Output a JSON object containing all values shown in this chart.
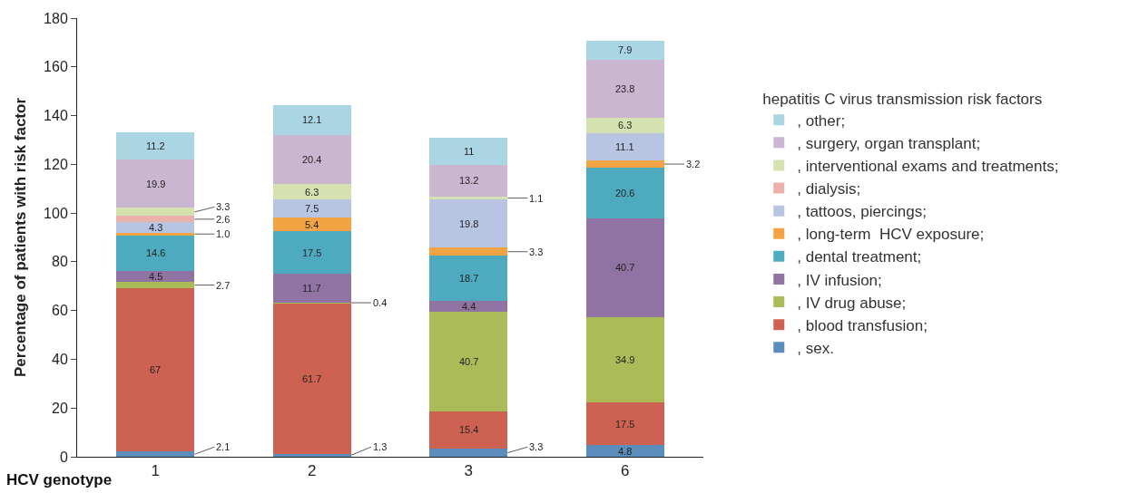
{
  "chart_data": {
    "type": "bar",
    "stacked": true,
    "ylabel": "Percentage of patients with risk factor",
    "xlabel": "HCV genotype",
    "legend_title": "hepatitis C virus transmission risk factors",
    "legend": "right",
    "categories": [
      "1",
      "2",
      "3",
      "6"
    ],
    "ylim": [
      0,
      180
    ],
    "yticks": [
      0,
      20,
      40,
      60,
      80,
      100,
      120,
      140,
      160,
      180
    ],
    "series": [
      {
        "name": ", sex.",
        "color": "#5b8dbd",
        "values": [
          2.1,
          1.3,
          3.3,
          4.8
        ],
        "value_labels": [
          "2.1",
          "1.3",
          "3.3",
          "4.8"
        ]
      },
      {
        "name": ", blood transfusion;",
        "color": "#cd6253",
        "values": [
          67,
          61.7,
          15.4,
          17.5
        ],
        "value_labels": [
          "67",
          "61.7",
          "15.4",
          "17.5"
        ]
      },
      {
        "name": ", IV drug abuse;",
        "color": "#aabb58",
        "values": [
          2.7,
          0.4,
          40.7,
          34.9
        ],
        "value_labels": [
          "2.7",
          "0.4",
          "40.7",
          "34.9"
        ]
      },
      {
        "name": ", IV infusion;",
        "color": "#9173a3",
        "values": [
          4.5,
          11.7,
          4.4,
          40.7
        ],
        "value_labels": [
          "4.5",
          "11.7",
          "4.4",
          "40.7"
        ]
      },
      {
        "name": ", dental treatment;",
        "color": "#4daabf",
        "values": [
          14.6,
          17.5,
          18.7,
          20.6
        ],
        "value_labels": [
          "14.6",
          "17.5",
          "18.7",
          "20.6"
        ]
      },
      {
        "name": ", long-term  HCV exposure;",
        "color": "#f2a444",
        "values": [
          1.0,
          5.4,
          3.3,
          3.2
        ],
        "value_labels": [
          "1.0",
          "5.4",
          "3.3",
          "3.2"
        ]
      },
      {
        "name": ", tattoos, piercings;",
        "color": "#b7c5e2",
        "values": [
          4.3,
          7.5,
          19.8,
          11.1
        ],
        "value_labels": [
          "4.3",
          "7.5",
          "19.8",
          "11.1"
        ]
      },
      {
        "name": ", dialysis;",
        "color": "#e9b3ab",
        "values": [
          2.6,
          null,
          null,
          null
        ],
        "value_labels": [
          "2.6",
          null,
          null,
          null
        ]
      },
      {
        "name": ", interventional exams and treatments;",
        "color": "#d6e1b0",
        "values": [
          3.3,
          6.3,
          1.1,
          6.3
        ],
        "value_labels": [
          "3.3",
          "6.3",
          "1.1",
          "6.3"
        ]
      },
      {
        "name": ", surgery, organ transplant;",
        "color": "#cbb6d2",
        "values": [
          19.9,
          20.4,
          13.2,
          23.8
        ],
        "value_labels": [
          "19.9",
          "20.4",
          "13.2",
          "23.8"
        ]
      },
      {
        "name": ", other;",
        "color": "#aad5e3",
        "values": [
          11.2,
          12.1,
          11,
          7.9
        ],
        "value_labels": [
          "11.2",
          "12.1",
          "11",
          "7.9"
        ]
      }
    ]
  }
}
